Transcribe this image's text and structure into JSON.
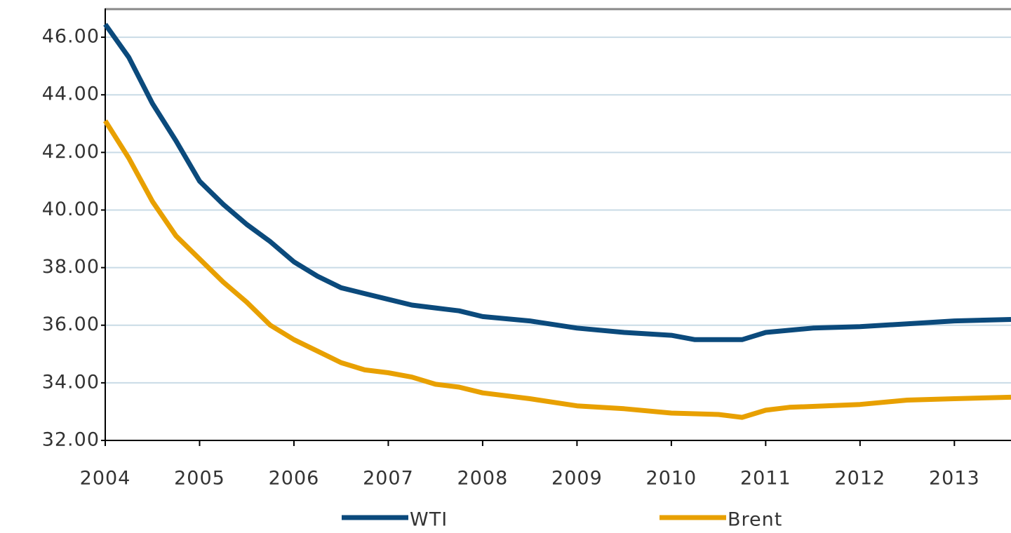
{
  "chart_data": {
    "type": "line",
    "xlim": [
      2004,
      2013.6
    ],
    "xticks": [
      2004,
      2005,
      2006,
      2007,
      2008,
      2009,
      2010,
      2011,
      2012,
      2013
    ],
    "ylim": [
      32,
      47
    ],
    "yticks": [
      {
        "value": 32,
        "label": "32.00"
      },
      {
        "value": 34,
        "label": "34.00"
      },
      {
        "value": 36,
        "label": "36.00"
      },
      {
        "value": 38,
        "label": "38.00"
      },
      {
        "value": 40,
        "label": "40.00"
      },
      {
        "value": 42,
        "label": "42.00"
      },
      {
        "value": 44,
        "label": "44.00"
      },
      {
        "value": 46,
        "label": "46.00"
      }
    ],
    "grid": true,
    "legend": "bottom",
    "series": [
      {
        "name": "WTI",
        "color": "#0b4a7c",
        "x": [
          2004,
          2004.25,
          2004.5,
          2004.75,
          2005,
          2005.25,
          2005.5,
          2005.75,
          2006,
          2006.25,
          2006.5,
          2006.75,
          2007,
          2007.25,
          2007.5,
          2007.75,
          2008,
          2008.5,
          2009,
          2009.5,
          2010,
          2010.25,
          2010.75,
          2011,
          2011.5,
          2012,
          2012.5,
          2013,
          2013.6
        ],
        "values": [
          46.45,
          45.3,
          43.7,
          42.4,
          41.0,
          40.2,
          39.5,
          38.9,
          38.2,
          37.7,
          37.3,
          37.1,
          36.9,
          36.7,
          36.6,
          36.5,
          36.3,
          36.15,
          35.9,
          35.75,
          35.65,
          35.5,
          35.5,
          35.75,
          35.9,
          35.95,
          36.05,
          36.15,
          36.2
        ]
      },
      {
        "name": "Brent",
        "color": "#e8a000",
        "x": [
          2004,
          2004.25,
          2004.5,
          2004.75,
          2005,
          2005.25,
          2005.5,
          2005.75,
          2006,
          2006.25,
          2006.5,
          2006.75,
          2007,
          2007.25,
          2007.5,
          2007.75,
          2008,
          2008.5,
          2009,
          2009.5,
          2010,
          2010.5,
          2010.75,
          2011,
          2011.25,
          2012,
          2012.5,
          2013,
          2013.6
        ],
        "values": [
          43.1,
          41.8,
          40.3,
          39.1,
          38.3,
          37.5,
          36.8,
          36.0,
          35.5,
          35.1,
          34.7,
          34.45,
          34.35,
          34.2,
          33.95,
          33.85,
          33.65,
          33.45,
          33.2,
          33.1,
          32.95,
          32.9,
          32.8,
          33.05,
          33.15,
          33.25,
          33.4,
          33.45,
          33.5
        ]
      }
    ]
  }
}
